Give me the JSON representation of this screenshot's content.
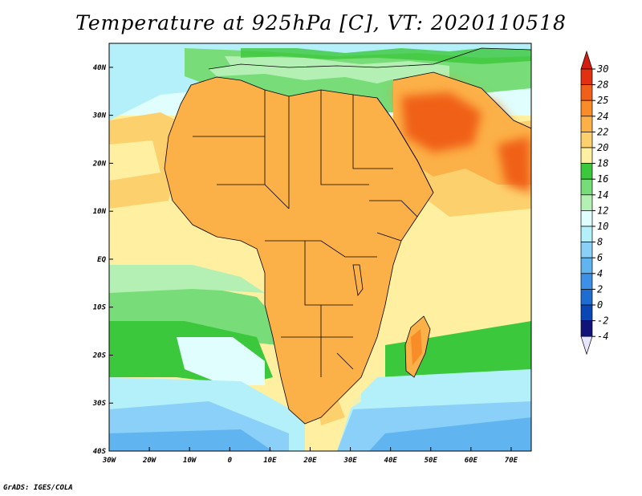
{
  "title": "Temperature at 925hPa [C], VT: 2020110518",
  "credit": "GrADS: IGES/COLA",
  "map": {
    "variable": "Temperature at 925hPa",
    "units": "C",
    "valid_time": "2020110518",
    "lon_range": [
      -30,
      75
    ],
    "lat_range": [
      -40,
      45
    ],
    "lon_ticks": [
      {
        "value": -30,
        "label": "30W"
      },
      {
        "value": -20,
        "label": "20W"
      },
      {
        "value": -10,
        "label": "10W"
      },
      {
        "value": 0,
        "label": "0"
      },
      {
        "value": 10,
        "label": "10E"
      },
      {
        "value": 20,
        "label": "20E"
      },
      {
        "value": 30,
        "label": "30E"
      },
      {
        "value": 40,
        "label": "40E"
      },
      {
        "value": 50,
        "label": "50E"
      },
      {
        "value": 60,
        "label": "60E"
      },
      {
        "value": 70,
        "label": "70E"
      }
    ],
    "lat_ticks": [
      {
        "value": 40,
        "label": "40N"
      },
      {
        "value": 30,
        "label": "30N"
      },
      {
        "value": 20,
        "label": "20N"
      },
      {
        "value": 10,
        "label": "10N"
      },
      {
        "value": 0,
        "label": "EQ"
      },
      {
        "value": -10,
        "label": "10S"
      },
      {
        "value": -20,
        "label": "20S"
      },
      {
        "value": -30,
        "label": "30S"
      },
      {
        "value": -40,
        "label": "40S"
      }
    ]
  },
  "colorbar": {
    "levels": [
      "30",
      "28",
      "25",
      "24",
      "22",
      "20",
      "18",
      "16",
      "14",
      "12",
      "10",
      "8",
      "6",
      "4",
      "2",
      "0",
      "-2",
      "-4"
    ],
    "colors": [
      "#e23010",
      "#f06018",
      "#f88c28",
      "#fcb048",
      "#fdd06e",
      "#fef0a0",
      "#3cc83c",
      "#78dc78",
      "#b4f0b4",
      "#e0fefe",
      "#b4f0fa",
      "#8ad0f8",
      "#60b4f0",
      "#3c90e8",
      "#1e6ed2",
      "#0a46b4",
      "#101478",
      "#e6e6ff"
    ],
    "top_color": "#d21e10",
    "bottom_color": "#e6e6ff"
  }
}
